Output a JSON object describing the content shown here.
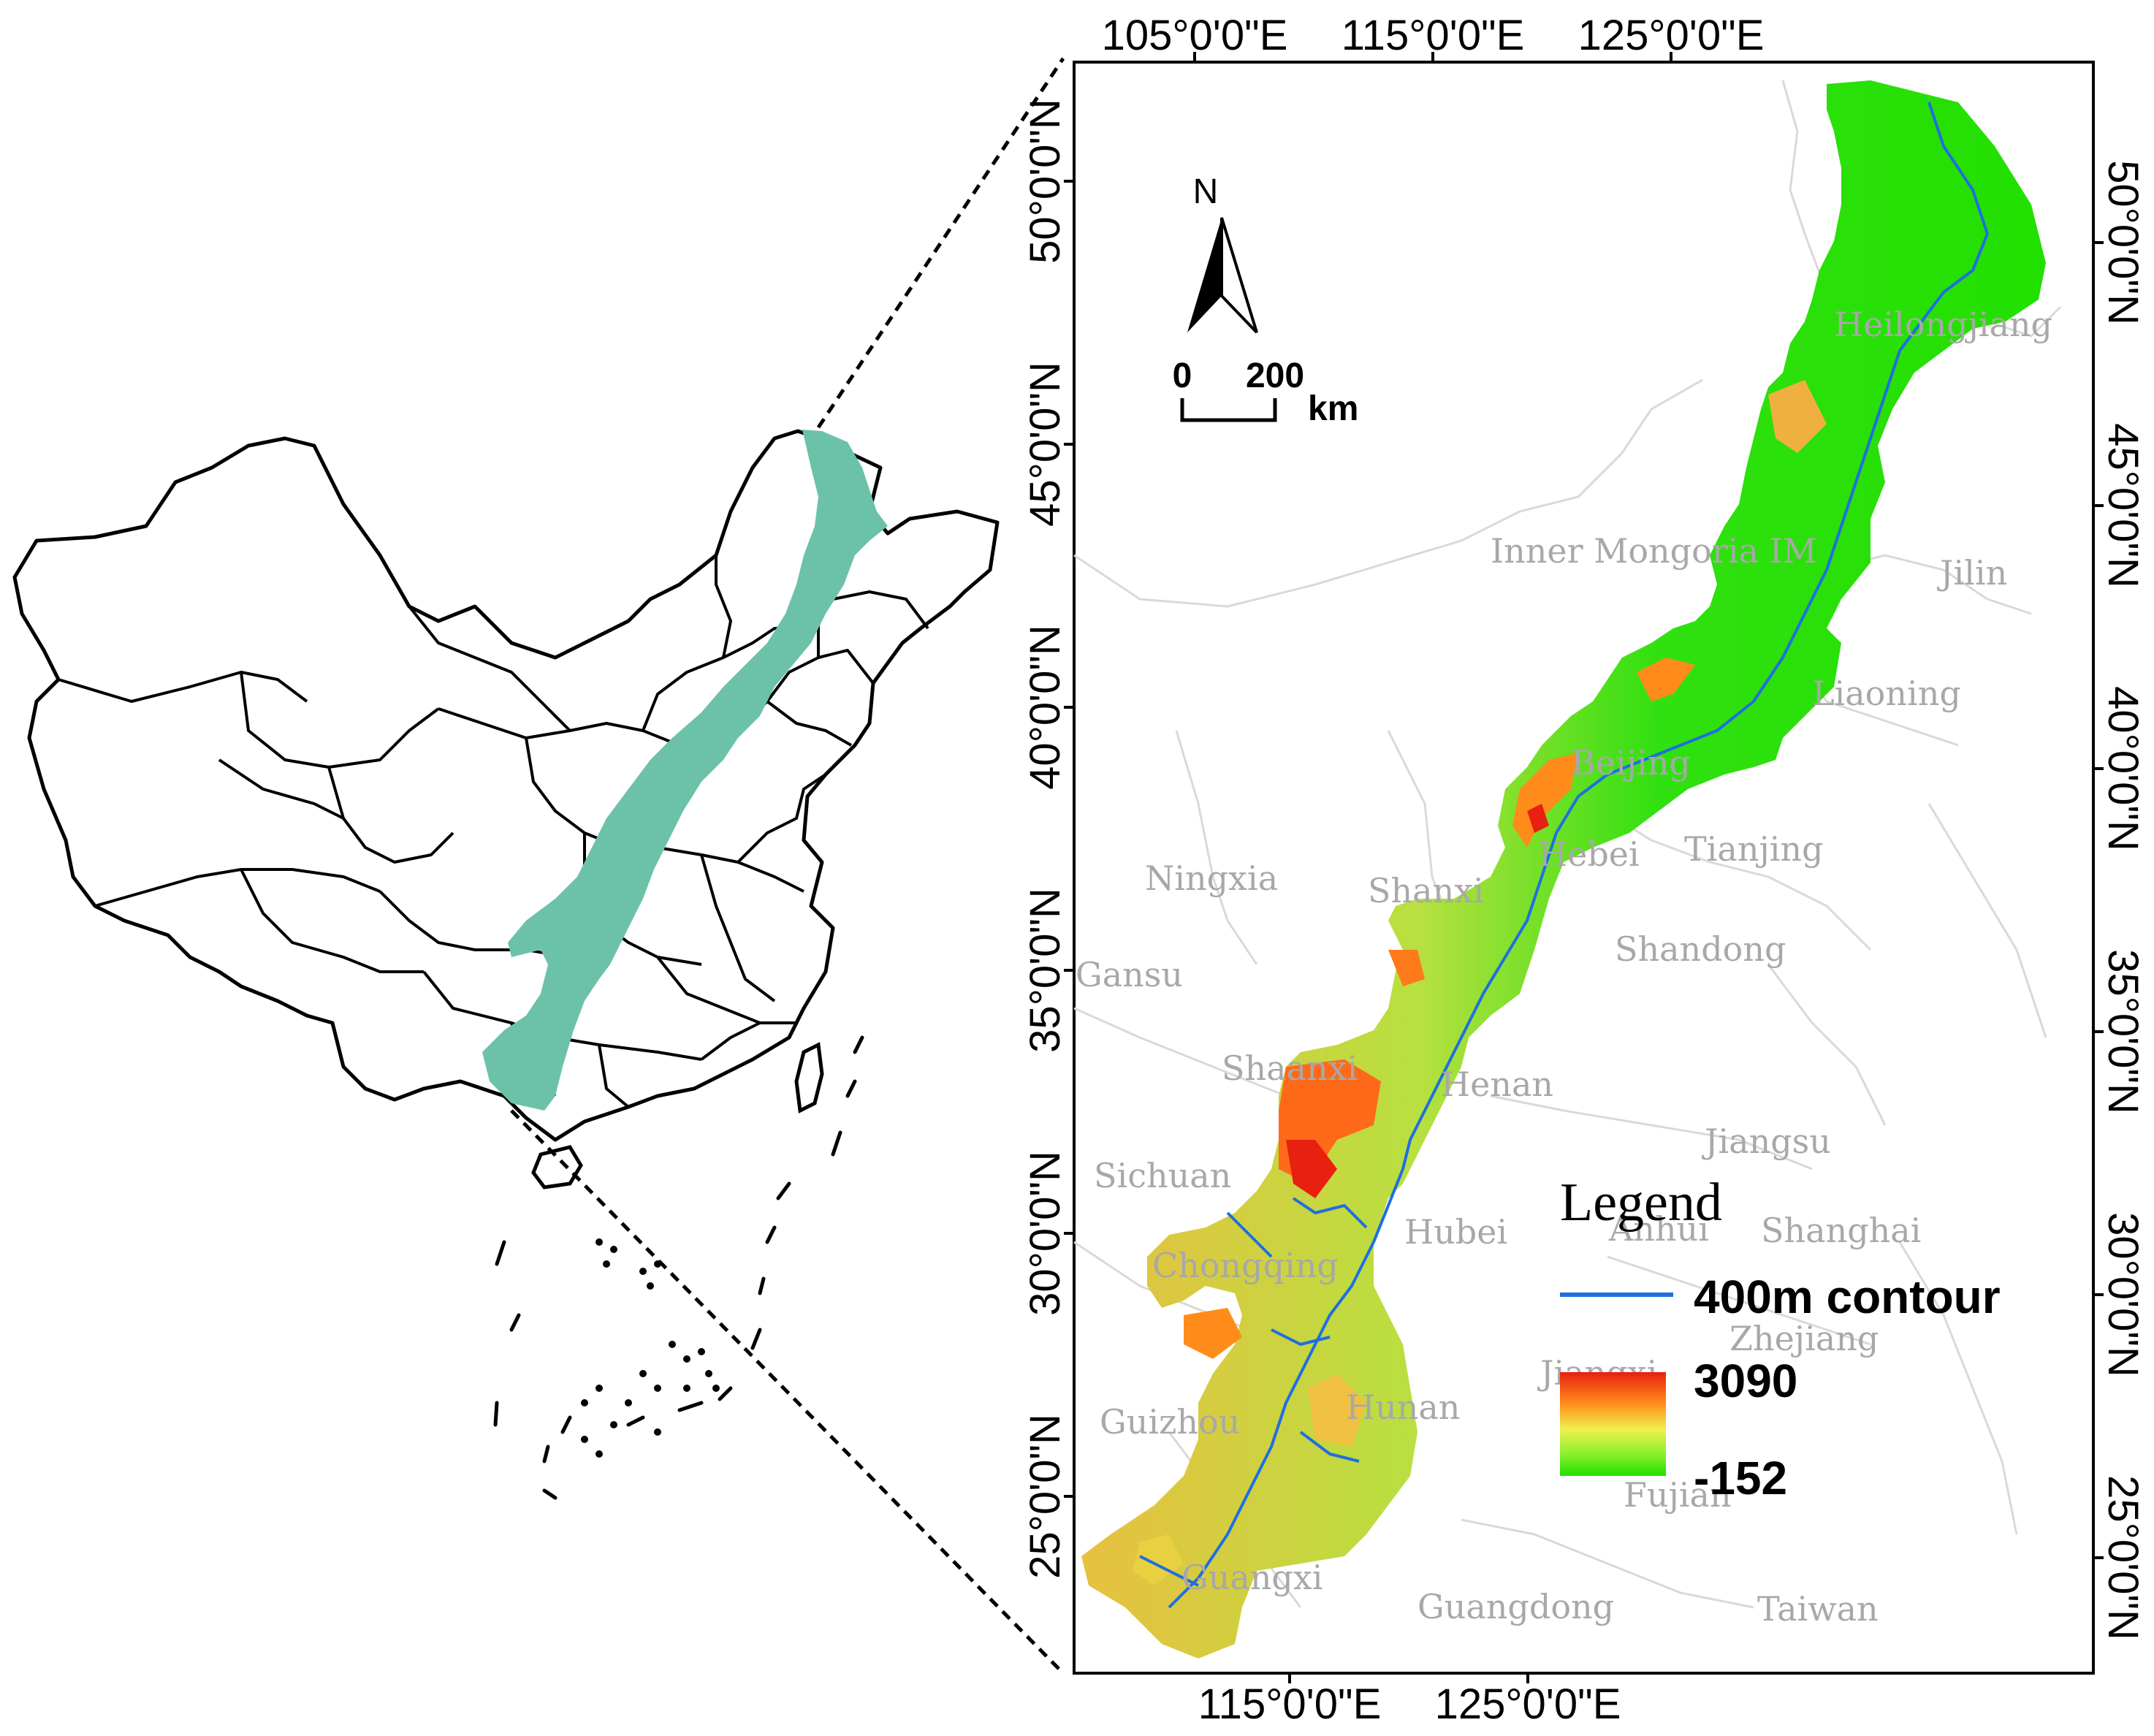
{
  "map": {
    "top_lon_ticks": [
      {
        "label": "105°0'0\"E",
        "lon": 105
      },
      {
        "label": "115°0'0\"E",
        "lon": 115
      },
      {
        "label": "125°0'0\"E",
        "lon": 125
      }
    ],
    "bottom_lon_ticks": [
      {
        "label": "115°0'0\"E",
        "lon": 115
      },
      {
        "label": "125°0'0\"E",
        "lon": 125
      }
    ],
    "left_lat_ticks": [
      {
        "label": "50°0'0\"N",
        "lat": 50
      },
      {
        "label": "45°0'0\"N",
        "lat": 45
      },
      {
        "label": "40°0'0\"N",
        "lat": 40
      },
      {
        "label": "35°0'0\"N",
        "lat": 35
      },
      {
        "label": "30°0'0\"N",
        "lat": 30
      },
      {
        "label": "25°0'0\"N",
        "lat": 25
      }
    ],
    "right_lat_ticks": [
      {
        "label": "50°0'0\"N",
        "lat": 50
      },
      {
        "label": "45°0'0\"N",
        "lat": 45
      },
      {
        "label": "40°0'0\"N",
        "lat": 40
      },
      {
        "label": "35°0'0\"N",
        "lat": 35
      },
      {
        "label": "30°0'0\"N",
        "lat": 30
      },
      {
        "label": "25°0'0\"N",
        "lat": 25
      }
    ],
    "provinces": [
      "Heilongjiang",
      "Inner Mongoria IM",
      "Jilin",
      "Liaoning",
      "Beijing",
      "Hebei",
      "Tianjing",
      "Ningxia",
      "Shanxi",
      "Shandong",
      "Gansu",
      "Shaanxi",
      "Henan",
      "Jiangsu",
      "Sichuan",
      "Anhui",
      "Shanghai",
      "Hubei",
      "Chongqing",
      "Zhejiang",
      "Jiangxi",
      "Guizhou",
      "Hunan",
      "Fujian",
      "Guangxi",
      "Guangdong",
      "Taiwan"
    ],
    "north_arrow": {
      "label": "N"
    },
    "scale_bar": {
      "zero": "0",
      "value": "200",
      "unit": "km"
    },
    "legend": {
      "title": "Legend",
      "contour_label": "400m contour",
      "elevation_max": "3090",
      "elevation_min": "-152"
    }
  },
  "colors": {
    "study_area_inset": "#6cc2a8",
    "contour": "#1f6fe0",
    "elev_low": "#22e000",
    "elev_mid": "#e8e84a",
    "elev_high": "#e82010",
    "province_border": "#d9d9d9"
  }
}
